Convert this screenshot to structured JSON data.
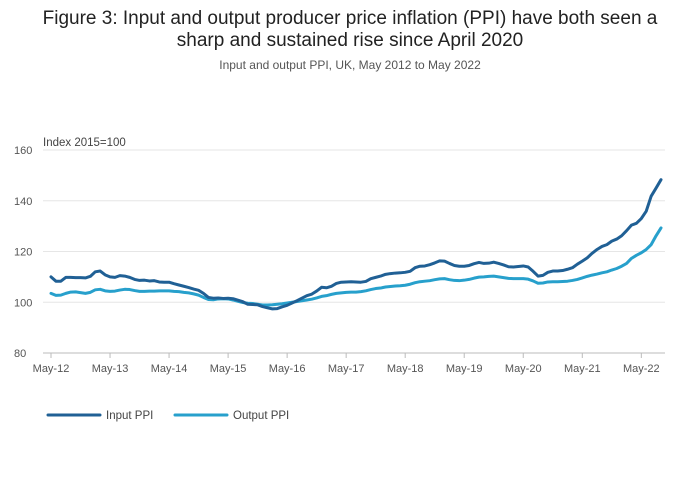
{
  "chart_data": {
    "type": "line",
    "title_lines": [
      "Figure 3: Input and output producer price inflation (PPI) have both seen a",
      "sharp and sustained rise since April 2020"
    ],
    "subtitle": "Input and output PPI, UK, May 2012 to May 2022",
    "ylabel": "Index 2015=100",
    "ylim": [
      80,
      160
    ],
    "yticks": [
      80,
      100,
      120,
      140,
      160
    ],
    "x_start": "May-12",
    "x_end": "May-22",
    "x_ticks": [
      "May-12",
      "May-13",
      "May-14",
      "May-15",
      "May-16",
      "May-17",
      "May-18",
      "May-19",
      "May-20",
      "May-21",
      "May-22"
    ],
    "grid": true,
    "legend_position": "bottom-left",
    "colors": {
      "input": "#206095",
      "output": "#27a0cc",
      "grid": "#e6e6e6",
      "axis": "#bbbbbb"
    },
    "series": [
      {
        "name": "Input PPI",
        "color": "#206095",
        "values": [
          110.0,
          108.3,
          108.3,
          109.8,
          109.8,
          109.7,
          109.7,
          109.6,
          110.2,
          112.0,
          112.3,
          110.8,
          110.0,
          109.8,
          110.5,
          110.3,
          109.8,
          109.0,
          108.6,
          108.7,
          108.4,
          108.5,
          108.0,
          107.9,
          107.9,
          107.3,
          106.8,
          106.3,
          105.8,
          105.2,
          104.7,
          103.5,
          101.9,
          101.6,
          101.7,
          101.5,
          101.6,
          101.4,
          100.8,
          100.2,
          99.2,
          99.1,
          99.0,
          98.3,
          97.8,
          97.4,
          97.5,
          98.2,
          98.8,
          99.7,
          100.6,
          101.6,
          102.6,
          103.2,
          104.4,
          105.9,
          105.7,
          106.3,
          107.4,
          107.9,
          108.0,
          108.1,
          108.0,
          107.9,
          108.2,
          109.3,
          109.8,
          110.3,
          111.0,
          111.3,
          111.5,
          111.6,
          111.8,
          112.2,
          113.6,
          114.2,
          114.3,
          114.8,
          115.5,
          116.3,
          116.2,
          115.3,
          114.5,
          114.2,
          114.2,
          114.5,
          115.2,
          115.7,
          115.3,
          115.4,
          115.8,
          115.3,
          114.7,
          114.0,
          113.9,
          114.1,
          114.3,
          113.9,
          112.2,
          110.3,
          110.6,
          111.8,
          112.3,
          112.3,
          112.5,
          113.0,
          113.6,
          115.0,
          116.2,
          117.5,
          119.3,
          120.8,
          122.0,
          122.7,
          124.1,
          124.9,
          126.2,
          128.2,
          130.4,
          131.1,
          133.0,
          135.9,
          141.8,
          145.0,
          148.3
        ]
      },
      {
        "name": "Output PPI",
        "color": "#27a0cc",
        "values": [
          103.5,
          102.7,
          102.8,
          103.5,
          104.0,
          104.1,
          103.8,
          103.5,
          103.9,
          104.9,
          105.1,
          104.5,
          104.3,
          104.4,
          104.8,
          105.1,
          105.0,
          104.6,
          104.3,
          104.3,
          104.4,
          104.4,
          104.5,
          104.5,
          104.5,
          104.3,
          104.2,
          103.9,
          103.7,
          103.3,
          102.8,
          101.9,
          101.1,
          101.0,
          101.3,
          101.4,
          101.3,
          100.9,
          100.4,
          99.9,
          99.6,
          99.5,
          99.2,
          98.9,
          98.9,
          99.0,
          99.2,
          99.4,
          99.7,
          100.0,
          100.3,
          100.6,
          100.9,
          101.2,
          101.7,
          102.3,
          102.6,
          103.1,
          103.5,
          103.7,
          103.9,
          104.0,
          104.0,
          104.2,
          104.5,
          105.0,
          105.4,
          105.6,
          106.0,
          106.2,
          106.4,
          106.5,
          106.7,
          107.1,
          107.7,
          108.1,
          108.3,
          108.5,
          108.9,
          109.2,
          109.3,
          108.9,
          108.6,
          108.5,
          108.7,
          109.0,
          109.5,
          109.9,
          110.0,
          110.2,
          110.3,
          110.0,
          109.7,
          109.4,
          109.3,
          109.3,
          109.3,
          109.1,
          108.4,
          107.5,
          107.6,
          108.0,
          108.1,
          108.1,
          108.2,
          108.3,
          108.6,
          109.0,
          109.6,
          110.2,
          110.7,
          111.1,
          111.6,
          112.0,
          112.7,
          113.3,
          114.2,
          115.3,
          117.3,
          118.5,
          119.5,
          120.8,
          122.7,
          126.2,
          129.3
        ]
      }
    ]
  }
}
